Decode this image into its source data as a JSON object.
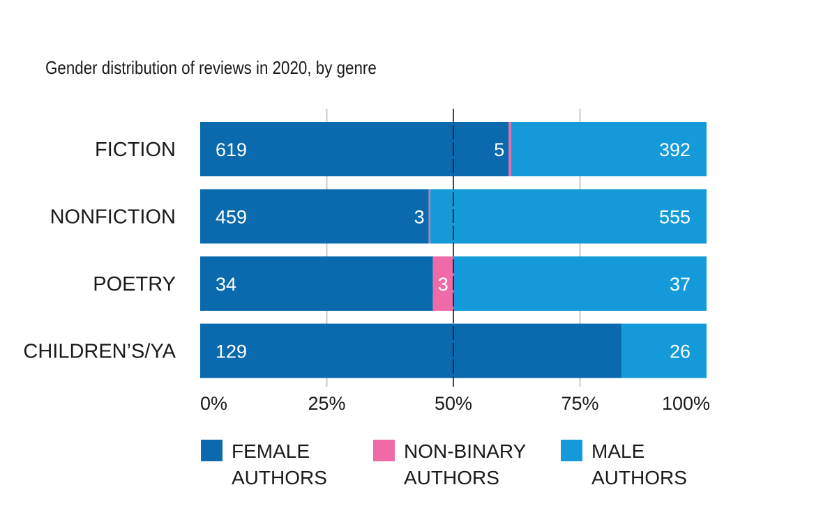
{
  "chart_data": {
    "type": "bar",
    "orientation": "horizontal",
    "stacked": "percent",
    "title": "Gender distribution of reviews in 2020, by genre",
    "categories": [
      "FICTION",
      "NONFICTION",
      "POETRY",
      "CHILDREN’S/YA"
    ],
    "series": [
      {
        "key": "female",
        "name_lines": [
          "FEMALE",
          "AUTHORS"
        ],
        "color": "#0b6aad",
        "values": [
          619,
          459,
          34,
          129
        ]
      },
      {
        "key": "nonbinary",
        "name_lines": [
          "NON-BINARY",
          "AUTHORS"
        ],
        "color": "#ef6aa7",
        "values": [
          5,
          3,
          3,
          0
        ]
      },
      {
        "key": "male",
        "name_lines": [
          "MALE",
          "AUTHORS"
        ],
        "color": "#149ad8",
        "values": [
          392,
          555,
          37,
          26
        ]
      }
    ],
    "x_ticks": [
      "0%",
      "25%",
      "50%",
      "75%",
      "100%"
    ],
    "xlim": [
      0,
      100
    ],
    "reference_line": 50,
    "grid": true,
    "legend": "bottom"
  }
}
